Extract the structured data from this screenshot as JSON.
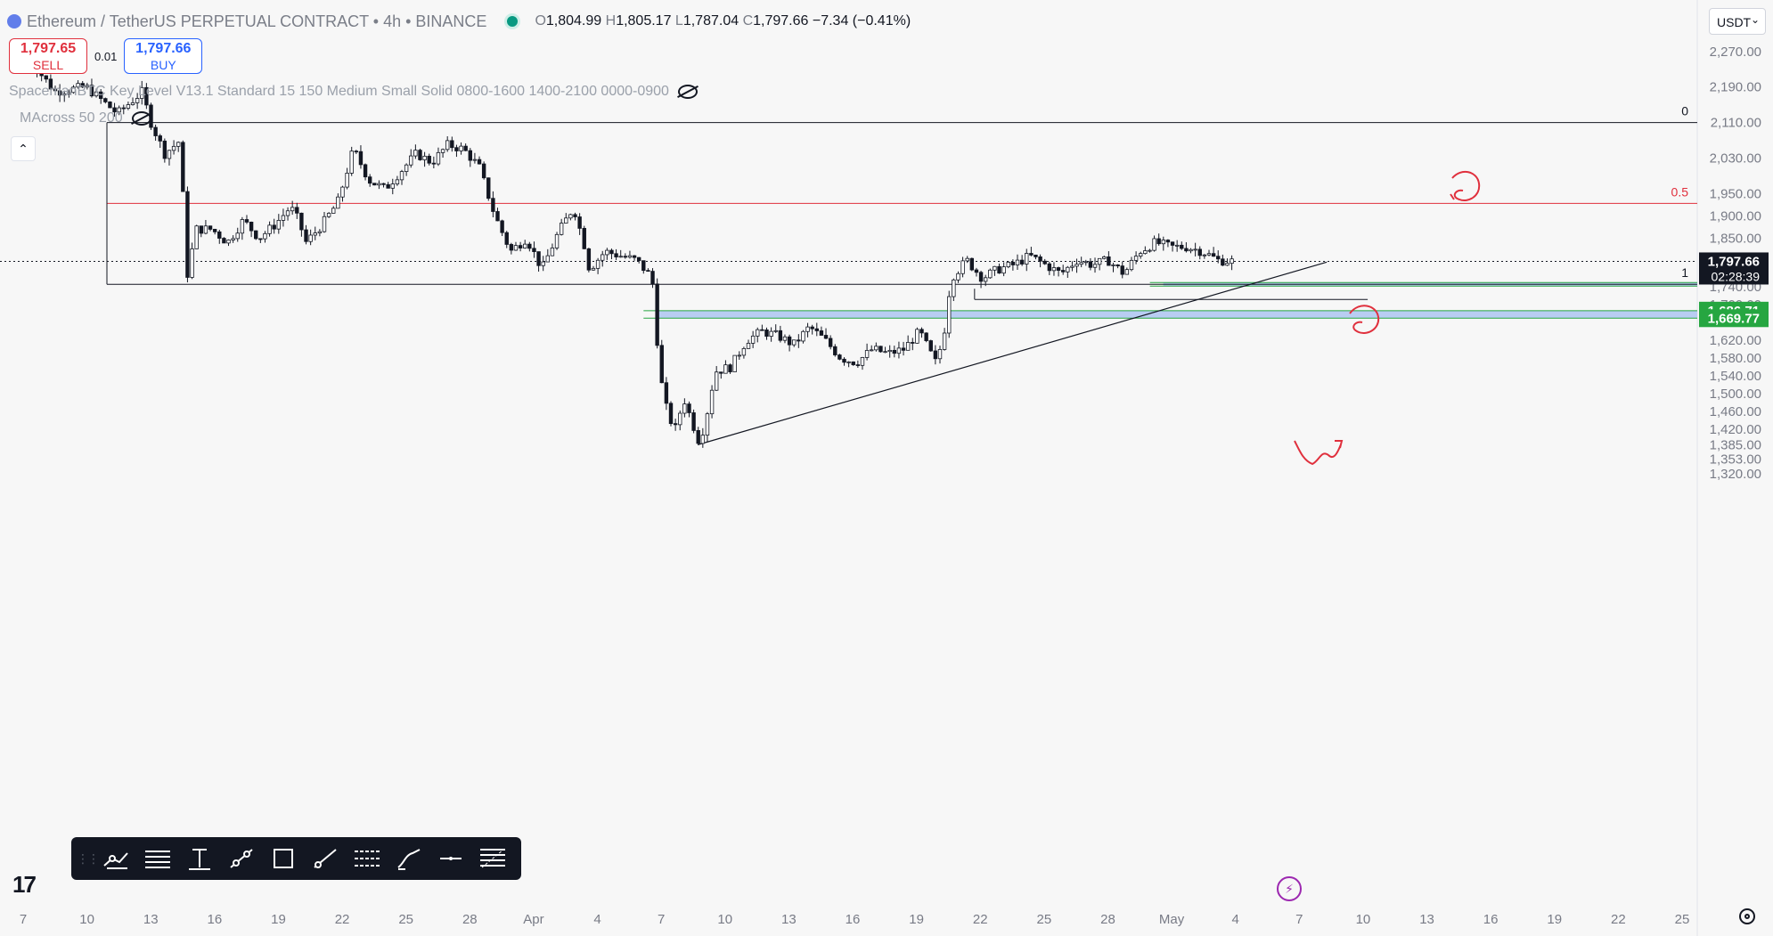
{
  "header": {
    "symbol": "Ethereum / TetherUS PERPETUAL CONTRACT • 4h • BINANCE",
    "ohlc": {
      "o_label": "O",
      "o": "1,804.99",
      "h_label": "H",
      "h": "1,805.17",
      "l_label": "L",
      "l": "1,787.04",
      "c_label": "C",
      "c": "1,797.66",
      "change": "−7.34 (−0.41%)"
    }
  },
  "trade_panel": {
    "sell_price": "1,797.65",
    "sell_label": "SELL",
    "spread": "0.01",
    "buy_price": "1,797.66",
    "buy_label": "BUY"
  },
  "indicators": [
    "SpacemanBTC Key Level V13.1 Standard 15 150 Medium Small Solid 0800-1600 1400-2100 0000-0900",
    "MAcross 50 200"
  ],
  "collapse_label": "⌃",
  "currency_selector": "USDT",
  "currency_chevron": "⌄",
  "toolbar": {
    "grip": "⋮⋮",
    "tools": [
      "multipoint-icon",
      "horizontal-lines-icon",
      "vertical-line-icon",
      "trend-line-icon",
      "rectangle-icon",
      "ray-icon",
      "parallel-channel-icon",
      "brush-icon",
      "horizontal-line-icon",
      "fib-retracement-icon"
    ]
  },
  "branding": {
    "logo_text": "17"
  },
  "bolt_label": "⚡",
  "colors": {
    "up": "#ffffff",
    "down": "#131722",
    "accent_red": "#e0303d",
    "zone": "#aec6f2",
    "price_tag": "#131722",
    "green_tag": "#26a641"
  },
  "chart_data": {
    "type": "candlestick",
    "symbol": "ETHUSDT.P",
    "interval": "4h",
    "ylim": [
      1300,
      2310
    ],
    "y_ticks": [
      "2,270.00",
      "2,190.00",
      "2,110.00",
      "2,030.00",
      "1,950.00",
      "1,900.00",
      "1,850.00",
      "1,740.00",
      "1,700.00",
      "1,620.00",
      "1,580.00",
      "1,540.00",
      "1,500.00",
      "1,460.00",
      "1,420.00",
      "1,385.00",
      "1,353.00",
      "1,320.00"
    ],
    "y_tick_values": [
      2270,
      2190,
      2110,
      2030,
      1950,
      1900,
      1850,
      1740,
      1700,
      1620,
      1580,
      1540,
      1500,
      1460,
      1420,
      1385,
      1353,
      1320
    ],
    "x_labels": [
      "7",
      "10",
      "13",
      "16",
      "19",
      "22",
      "25",
      "28",
      "Apr",
      "4",
      "7",
      "10",
      "13",
      "16",
      "19",
      "22",
      "25",
      "28",
      "May",
      "4",
      "7",
      "10",
      "13",
      "16",
      "19",
      "22",
      "25"
    ],
    "price_path": [
      [
        0,
        2270
      ],
      [
        2,
        2180
      ],
      [
        4,
        2190
      ],
      [
        6,
        2130
      ],
      [
        7.6,
        2180
      ],
      [
        8,
        2120
      ],
      [
        9,
        2040
      ],
      [
        10,
        2070
      ],
      [
        10.4,
        1760
      ],
      [
        11,
        1870
      ],
      [
        12,
        1870
      ],
      [
        13,
        1840
      ],
      [
        14,
        1890
      ],
      [
        15,
        1850
      ],
      [
        16,
        1880
      ],
      [
        17,
        1920
      ],
      [
        17.5,
        1890
      ],
      [
        18,
        1840
      ],
      [
        19,
        1880
      ],
      [
        20,
        1930
      ],
      [
        21,
        2050
      ],
      [
        22,
        1980
      ],
      [
        23,
        1960
      ],
      [
        24,
        2000
      ],
      [
        25,
        2040
      ],
      [
        26,
        2020
      ],
      [
        27,
        2060
      ],
      [
        28,
        2050
      ],
      [
        29,
        2010
      ],
      [
        30,
        1900
      ],
      [
        31,
        1820
      ],
      [
        32,
        1850
      ],
      [
        33,
        1780
      ],
      [
        34,
        1860
      ],
      [
        35,
        1920
      ],
      [
        35.8,
        1820
      ],
      [
        36,
        1780
      ],
      [
        37,
        1820
      ],
      [
        38,
        1810
      ],
      [
        39,
        1800
      ],
      [
        40,
        1760
      ],
      [
        40.5,
        1540
      ],
      [
        41,
        1450
      ],
      [
        41.5,
        1420
      ],
      [
        42,
        1490
      ],
      [
        42.5,
        1440
      ],
      [
        43,
        1390
      ],
      [
        43.4,
        1440
      ],
      [
        44,
        1550
      ],
      [
        45,
        1560
      ],
      [
        46,
        1620
      ],
      [
        47,
        1640
      ],
      [
        48,
        1630
      ],
      [
        49,
        1610
      ],
      [
        50,
        1650
      ],
      [
        51,
        1620
      ],
      [
        52,
        1580
      ],
      [
        53,
        1570
      ],
      [
        54,
        1600
      ],
      [
        55,
        1590
      ],
      [
        56,
        1600
      ],
      [
        57,
        1640
      ],
      [
        58,
        1570
      ],
      [
        58.5,
        1620
      ],
      [
        59,
        1760
      ],
      [
        60,
        1800
      ],
      [
        61,
        1760
      ],
      [
        62,
        1780
      ],
      [
        63,
        1790
      ],
      [
        64,
        1810
      ],
      [
        65,
        1790
      ],
      [
        66,
        1770
      ],
      [
        67,
        1800
      ],
      [
        68,
        1790
      ],
      [
        69,
        1800
      ],
      [
        70,
        1770
      ],
      [
        71,
        1820
      ],
      [
        72,
        1840
      ],
      [
        73,
        1830
      ],
      [
        74,
        1830
      ],
      [
        75,
        1820
      ],
      [
        76,
        1800
      ],
      [
        77,
        1797.66
      ]
    ],
    "last_price": "1,797.66",
    "countdown": "02:28:39",
    "zone_upper_tag": "1,686.71",
    "zone_lower_tag": "1,669.77",
    "fib_levels": [
      {
        "label": "0",
        "value": 2110
      },
      {
        "label": "0.5",
        "value": 1928
      },
      {
        "label": "1",
        "value": 1746
      }
    ],
    "zones": [
      {
        "name": "support-zone",
        "from": 1669.77,
        "to": 1686.71,
        "start_x": 40.3
      },
      {
        "name": "retest-zone",
        "from": 1742,
        "to": 1750,
        "start_x": 72.5
      }
    ],
    "lines": [
      {
        "name": "swing-low-line",
        "value": 1712,
        "x_from": 60.5,
        "x_to": 85.5
      },
      {
        "name": "ascending-trendline",
        "from": [
          42.9,
          1385
        ],
        "to": [
          82.9,
          1796
        ]
      }
    ],
    "grid": false
  }
}
